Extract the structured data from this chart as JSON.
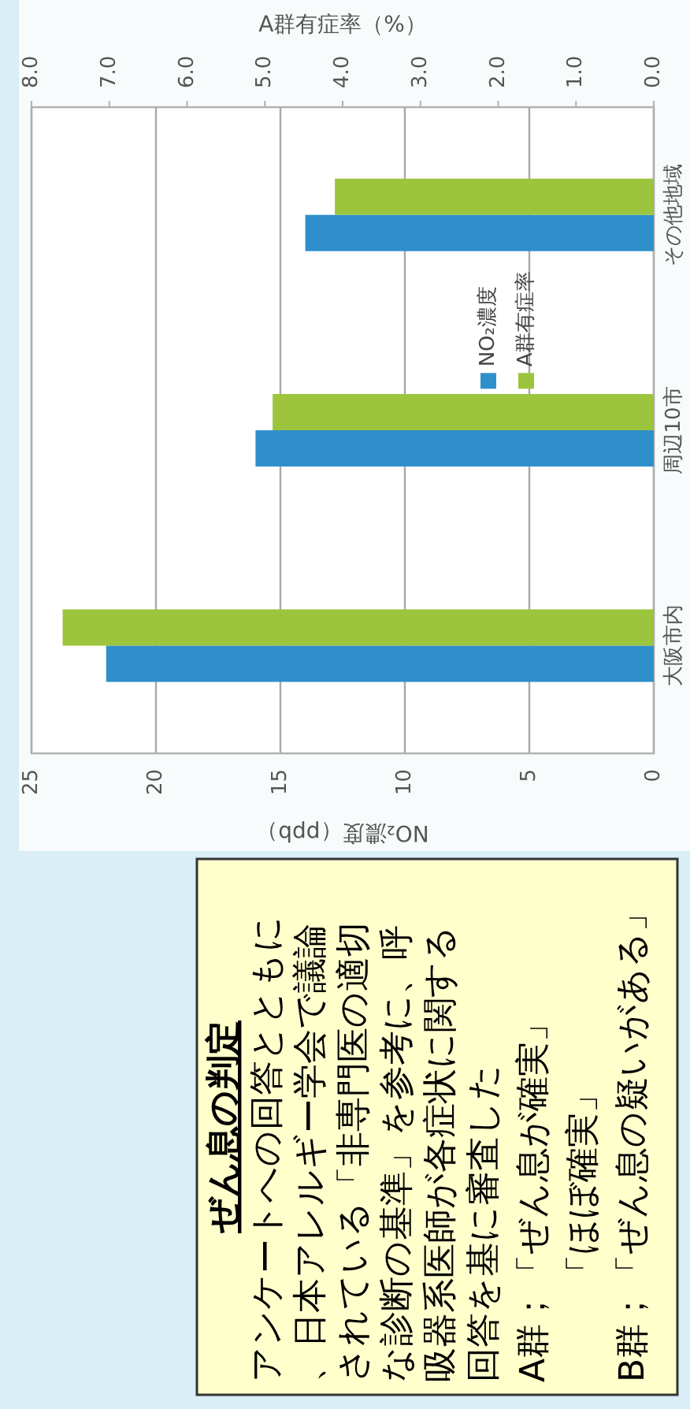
{
  "chart_data": {
    "type": "bar",
    "orientation": "horizontal",
    "categories": [
      "その他地域",
      "周辺10市",
      "大阪市内"
    ],
    "series": [
      {
        "name": "NO₂濃度",
        "color": "#2f8fcb",
        "values": [
          14,
          16,
          22
        ]
      },
      {
        "name": "A群有症率",
        "color": "#9cc43c",
        "values": [
          4.1,
          4.9,
          7.6
        ],
        "axis": "x2"
      }
    ],
    "xlabel": "NO₂濃度（ppb）",
    "x2label": "A群有症率（%）",
    "xlim": [
      25,
      0
    ],
    "xticks": [
      0,
      5,
      10,
      15,
      20,
      25
    ],
    "x2lim": [
      8,
      0
    ],
    "x2ticks": [
      {
        "value": 0,
        "label": "0.0"
      },
      {
        "value": 1,
        "label": "1.0"
      },
      {
        "value": 2,
        "label": "2.0"
      },
      {
        "value": 3,
        "label": "3.0"
      },
      {
        "value": 4,
        "label": "4.0"
      },
      {
        "value": 5,
        "label": "5.0"
      },
      {
        "value": 6,
        "label": "6.0"
      },
      {
        "value": 7,
        "label": "7.0"
      },
      {
        "value": 8,
        "label": "8.0"
      }
    ],
    "grid": "x",
    "legend": "top right",
    "annotations": [
      "ぜん息の判定",
      "アンケートへの回答とともに、日本アレルギー学会で議論されている「非専門医の適切な診断の基準」を参考に、呼吸器系医師が各症状に関する回答を基に審査した",
      "A群；「ぜん息が確実」",
      "「ほぼ確実」",
      "B群；「ぜん息の疑いがある」"
    ]
  }
}
